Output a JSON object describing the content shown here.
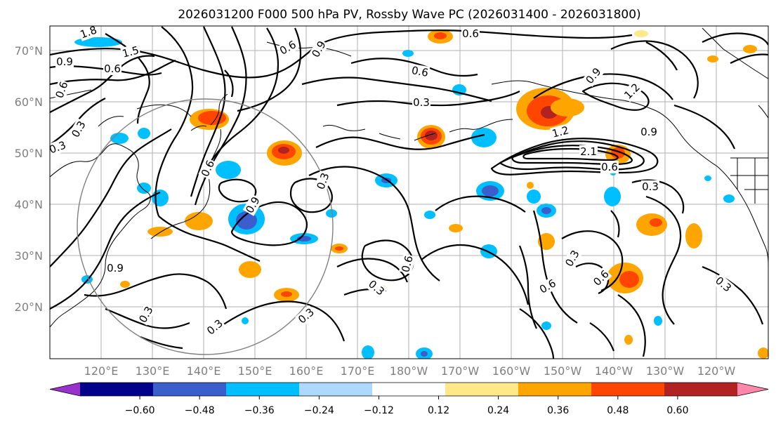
{
  "title": "2026031200 F000 500 hPa PV, Rossby Wave PC (2026031400 - 2026031800)",
  "lat_labels": [
    "70°N",
    "60°N",
    "50°N",
    "40°N",
    "30°N",
    "20°N"
  ],
  "lon_labels": [
    "120°E",
    "130°E",
    "140°E",
    "150°E",
    "160°E",
    "170°E",
    "180°W",
    "170°W",
    "160°W",
    "150°W",
    "140°W",
    "130°W",
    "120°W"
  ],
  "colorbar": {
    "ticks": [
      "−0.60",
      "−0.48",
      "−0.36",
      "−0.24",
      "−0.12",
      "0.12",
      "0.24",
      "0.36",
      "0.48",
      "0.60"
    ],
    "colors": [
      "#9932cc",
      "#00008b",
      "#3a5fcd",
      "#00bfff",
      "#add8ff",
      "#ffffff",
      "#ffe888",
      "#ffa500",
      "#ff4500",
      "#b22222",
      "#ff88aa"
    ]
  },
  "contour_labels": [
    "1.8",
    "1.5",
    "0.9",
    "0.6",
    "0.6",
    "0.3",
    "0.3",
    "0.9",
    "0.6",
    "0.3",
    "0.6",
    "0.6",
    "0.9",
    "1.2",
    "2.1",
    "0.9",
    "1.2",
    "0.6",
    "0.3",
    "0.6",
    "0.9",
    "0.3",
    "0.3",
    "0.3",
    "0.9",
    "0.3",
    "0.3",
    "0.6",
    "0.6",
    "0.3",
    "0.3",
    "0.6"
  ]
}
